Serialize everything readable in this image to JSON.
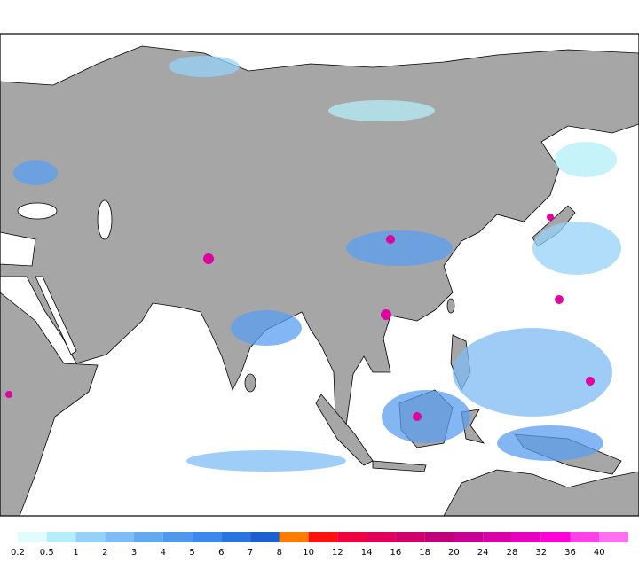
{
  "legend": {
    "labels": [
      0.2,
      0.5,
      1,
      2,
      3,
      4,
      5,
      6,
      7,
      8,
      10,
      12,
      14,
      16,
      18,
      20,
      24,
      28,
      32,
      36,
      40
    ],
    "colors": [
      "#e0fcfc",
      "#b4eef8",
      "#96d2f8",
      "#7ebcf4",
      "#64a8f0",
      "#5098ee",
      "#3c88ec",
      "#2a74e0",
      "#1c60d0",
      "#ff7c00",
      "#ff1010",
      "#f00040",
      "#e0005a",
      "#d0006a",
      "#c00078",
      "#c80094",
      "#d800a8",
      "#e800c0",
      "#ff00d8",
      "#ff40e8",
      "#ff70f0"
    ]
  }
}
